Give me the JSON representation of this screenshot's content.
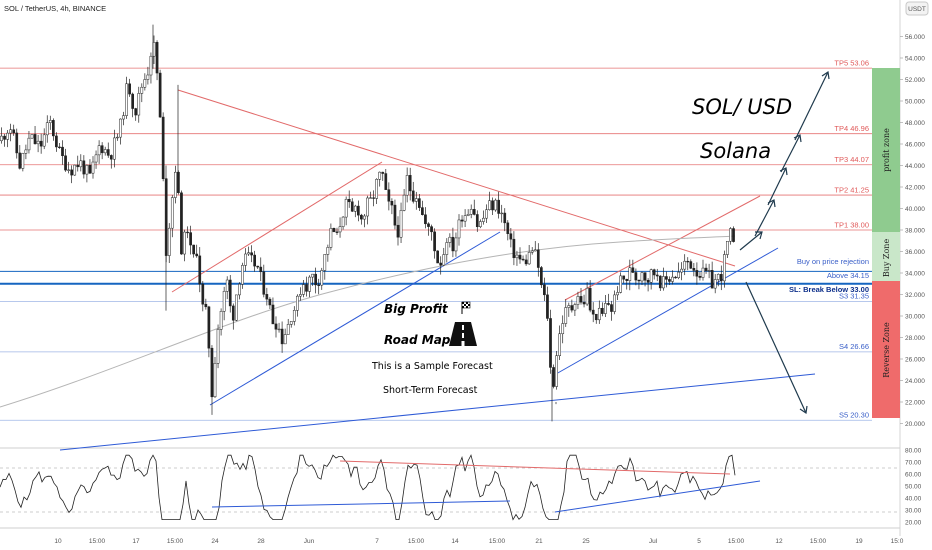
{
  "header": {
    "symbol": "SOL / TetherUS, 4h, BINANCE",
    "currency_badge": "USDT"
  },
  "annotations": {
    "title": "SOL/ USD",
    "subtitle": "Solana",
    "big_profit": "Big Profit",
    "road_map": "Road Map",
    "sample": "This is a Sample Forecast",
    "short_term": "Short-Term Forecast"
  },
  "zones": {
    "profit": "profit zone",
    "buy": "Buy Zone",
    "reverse": "Reverse Zone"
  },
  "colors": {
    "up": "#26a69a",
    "down": "#ef5350",
    "candle": "#222222",
    "target": "#e57373",
    "support": "#1e4fd8",
    "buy_line": "#1565c0",
    "profit_zone": "#8fcb8f",
    "buy_zone": "#c9e7c9",
    "reverse_zone": "#ef6b6b",
    "rsi": "#222222"
  },
  "icons": [
    "flag-icon",
    "road-icon"
  ],
  "chart_data": {
    "type": "candlestick",
    "title": "SOL / TetherUS, 4h, BINANCE",
    "ylim": [
      19,
      57
    ],
    "y_ticks": [
      "56.000",
      "54.000",
      "52.000",
      "50.000",
      "48.000",
      "46.000",
      "44.000",
      "42.000",
      "40.000",
      "38.000",
      "36.000",
      "34.000",
      "32.000",
      "30.000",
      "28.000",
      "26.000",
      "24.000",
      "22.000",
      "20.000"
    ],
    "x_ticks": [
      "10",
      "15:00",
      "17",
      "15:00",
      "24",
      "28",
      "Jun",
      "7",
      "15:00",
      "14",
      "15:00",
      "21",
      "25",
      "Jul",
      "5",
      "15:00",
      "12",
      "15:00",
      "19",
      "15:0"
    ],
    "price_path": [
      [
        0,
        46.3
      ],
      [
        10,
        47.8
      ],
      [
        20,
        44.0
      ],
      [
        30,
        46.6
      ],
      [
        40,
        45.7
      ],
      [
        50,
        48.1
      ],
      [
        60,
        45.0
      ],
      [
        70,
        43.6
      ],
      [
        80,
        44.3
      ],
      [
        90,
        42.9
      ],
      [
        100,
        46.0
      ],
      [
        110,
        44.9
      ],
      [
        120,
        47.4
      ],
      [
        128,
        51.8
      ],
      [
        135,
        48.9
      ],
      [
        142,
        51.5
      ],
      [
        148,
        52.9
      ],
      [
        153,
        55.8
      ],
      [
        158,
        51.8
      ],
      [
        162,
        45.0
      ],
      [
        166,
        36.0
      ],
      [
        171,
        40.0
      ],
      [
        176,
        44.4
      ],
      [
        182,
        35.6
      ],
      [
        187,
        38.7
      ],
      [
        192,
        35.0
      ],
      [
        197,
        36.3
      ],
      [
        202,
        30.9
      ],
      [
        207,
        30.0
      ],
      [
        212,
        22.8
      ],
      [
        217,
        28.4
      ],
      [
        222,
        31.0
      ],
      [
        227,
        33.3
      ],
      [
        232,
        29.4
      ],
      [
        237,
        32.5
      ],
      [
        242,
        34.8
      ],
      [
        247,
        35.4
      ],
      [
        252,
        35.0
      ],
      [
        257,
        34.7
      ],
      [
        262,
        33.0
      ],
      [
        267,
        32.0
      ],
      [
        272,
        29.7
      ],
      [
        277,
        29.4
      ],
      [
        282,
        27.9
      ],
      [
        287,
        28.9
      ],
      [
        292,
        30.4
      ],
      [
        297,
        31.1
      ],
      [
        302,
        33.2
      ],
      [
        307,
        32.8
      ],
      [
        312,
        33.8
      ],
      [
        317,
        33.0
      ],
      [
        322,
        34.5
      ],
      [
        327,
        36.3
      ],
      [
        332,
        38.1
      ],
      [
        337,
        37.3
      ],
      [
        342,
        39.5
      ],
      [
        347,
        40.5
      ],
      [
        352,
        39.4
      ],
      [
        357,
        40.4
      ],
      [
        362,
        38.8
      ],
      [
        367,
        40.3
      ],
      [
        372,
        40.7
      ],
      [
        377,
        42.4
      ],
      [
        382,
        43.4
      ],
      [
        387,
        40.5
      ],
      [
        392,
        39.8
      ],
      [
        397,
        37.6
      ],
      [
        402,
        39.5
      ],
      [
        407,
        42.8
      ],
      [
        412,
        41.3
      ],
      [
        417,
        41.4
      ],
      [
        422,
        39.5
      ],
      [
        427,
        38.0
      ],
      [
        432,
        37.8
      ],
      [
        437,
        35.2
      ],
      [
        442,
        35.1
      ],
      [
        447,
        37.5
      ],
      [
        452,
        36.2
      ],
      [
        457,
        37.8
      ],
      [
        462,
        39.5
      ],
      [
        467,
        39.6
      ],
      [
        472,
        40.7
      ],
      [
        477,
        38.5
      ],
      [
        482,
        38.7
      ],
      [
        487,
        40.1
      ],
      [
        492,
        40.3
      ],
      [
        497,
        40.4
      ],
      [
        502,
        39.4
      ],
      [
        507,
        37.8
      ],
      [
        512,
        36.1
      ],
      [
        517,
        35.6
      ],
      [
        522,
        34.9
      ],
      [
        527,
        35.3
      ],
      [
        532,
        36.2
      ],
      [
        537,
        35.3
      ],
      [
        542,
        32.3
      ],
      [
        547,
        30.8
      ],
      [
        552,
        22.6
      ],
      [
        557,
        26.9
      ],
      [
        562,
        29.5
      ],
      [
        567,
        30.6
      ],
      [
        572,
        30.8
      ],
      [
        577,
        32.3
      ],
      [
        582,
        30.8
      ],
      [
        587,
        32.3
      ],
      [
        592,
        29.7
      ],
      [
        597,
        30.3
      ],
      [
        602,
        29.9
      ],
      [
        607,
        31.4
      ],
      [
        612,
        30.6
      ],
      [
        617,
        32.6
      ],
      [
        622,
        33.3
      ],
      [
        627,
        33.5
      ],
      [
        632,
        34.5
      ],
      [
        637,
        33.4
      ],
      [
        642,
        34.3
      ],
      [
        647,
        33.4
      ],
      [
        652,
        34.0
      ],
      [
        657,
        34.1
      ],
      [
        662,
        32.9
      ],
      [
        667,
        33.4
      ],
      [
        672,
        33.9
      ],
      [
        677,
        33.8
      ],
      [
        682,
        34.2
      ],
      [
        687,
        35.1
      ],
      [
        692,
        34.8
      ],
      [
        697,
        34.2
      ],
      [
        702,
        33.8
      ],
      [
        707,
        33.9
      ],
      [
        712,
        33.1
      ],
      [
        717,
        33.4
      ],
      [
        722,
        34.0
      ],
      [
        727,
        36.5
      ],
      [
        730,
        37.7
      ],
      [
        733,
        36.7
      ],
      [
        736,
        34.4
      ]
    ],
    "levels": [
      {
        "label": "TP5 53.06",
        "value": 53.06,
        "kind": "target"
      },
      {
        "label": "TP4 46.96",
        "value": 46.96,
        "kind": "target"
      },
      {
        "label": "TP3 44.07",
        "value": 44.07,
        "kind": "target"
      },
      {
        "label": "TP2 41.25",
        "value": 41.25,
        "kind": "target"
      },
      {
        "label": "TP1 38.00",
        "value": 38.0,
        "kind": "target"
      },
      {
        "label": "Buy on price rejection",
        "value": 34.6,
        "kind": "buy-text"
      },
      {
        "label": "Above 34.15",
        "value": 34.15,
        "kind": "buy"
      },
      {
        "label": "SL: Break Below 33.00",
        "value": 33.0,
        "kind": "sl"
      },
      {
        "label": "S3 31.35",
        "value": 31.35,
        "kind": "support"
      },
      {
        "label": "S4 26.66",
        "value": 26.66,
        "kind": "support"
      },
      {
        "label": "S5 20.30",
        "value": 20.3,
        "kind": "support"
      }
    ],
    "rsi": {
      "ylim": [
        15,
        82
      ],
      "y_ticks": [
        "80.00",
        "70.00",
        "60.00",
        "50.00",
        "40.00",
        "30.00",
        "20.00"
      ],
      "levels": [
        70,
        30
      ]
    }
  }
}
